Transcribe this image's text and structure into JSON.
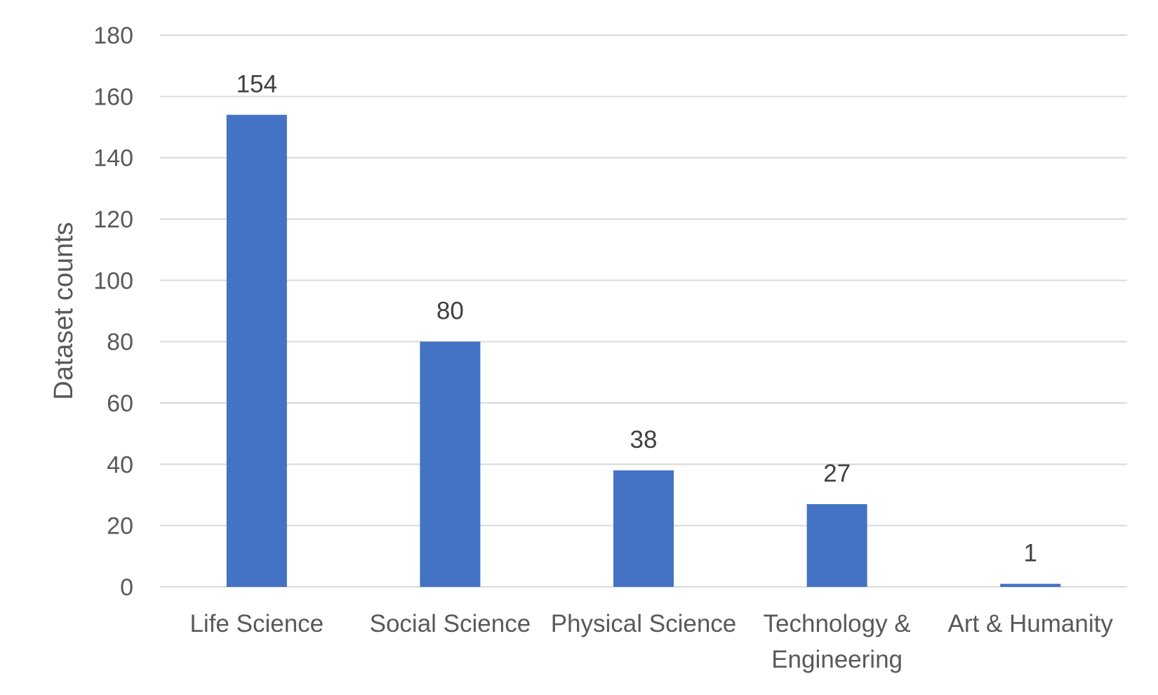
{
  "chart_data": {
    "type": "bar",
    "title": "",
    "xlabel": "",
    "ylabel": "Dataset counts",
    "ylim": [
      0,
      180
    ],
    "yticks": [
      0,
      20,
      40,
      60,
      80,
      100,
      120,
      140,
      160,
      180
    ],
    "grid": true,
    "legend": "none",
    "categories": [
      [
        "Life Science"
      ],
      [
        "Social Science"
      ],
      [
        "Physical Science"
      ],
      [
        "Technology &",
        "Engineering"
      ],
      [
        "Art & Humanity"
      ]
    ],
    "values": [
      154,
      80,
      38,
      27,
      1
    ],
    "colors": {
      "bar": "#4472C4",
      "grid": "#D9D9D9",
      "text": "#595959",
      "data_label": "#404040"
    }
  }
}
